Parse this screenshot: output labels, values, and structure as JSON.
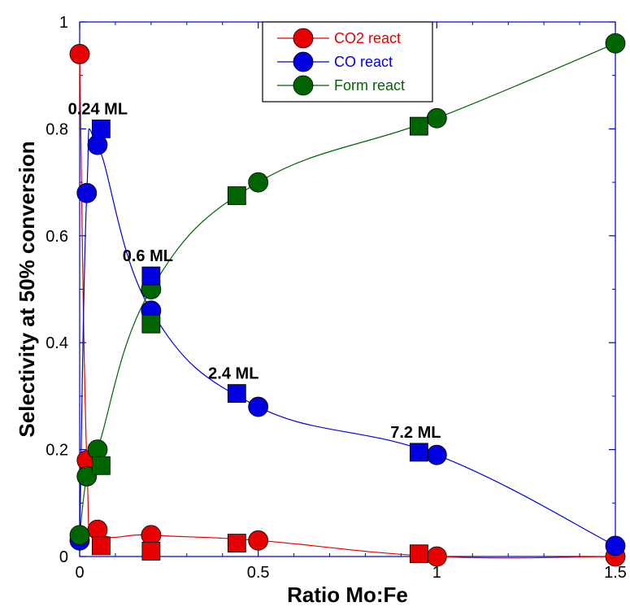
{
  "chart_data": {
    "type": "scatter",
    "xlabel": "Ratio Mo:Fe",
    "ylabel": "Selectivity at 50% conversion",
    "xlim": [
      0,
      1.5
    ],
    "ylim": [
      0,
      1
    ],
    "x_ticks": [
      "0",
      "0.5",
      "1",
      "1.5"
    ],
    "y_ticks": [
      "0",
      "0.2",
      "0.4",
      "0.6",
      "0.8",
      "1"
    ],
    "grid": false,
    "legend_position": "top-center",
    "series": [
      {
        "name": "CO2 react",
        "color": "#e60000",
        "marker": "circle",
        "line": true,
        "points": [
          [
            0,
            0.94
          ],
          [
            0.02,
            0.18
          ],
          [
            0.05,
            0.05
          ],
          [
            0.2,
            0.04
          ],
          [
            0.5,
            0.03
          ],
          [
            1.0,
            0.0
          ],
          [
            1.5,
            0.0
          ]
        ]
      },
      {
        "name": "CO react",
        "color": "#0000e0",
        "marker": "circle",
        "line": true,
        "points": [
          [
            0,
            0.03
          ],
          [
            0.02,
            0.68
          ],
          [
            0.05,
            0.77
          ],
          [
            0.2,
            0.46
          ],
          [
            0.5,
            0.28
          ],
          [
            1.0,
            0.19
          ],
          [
            1.5,
            0.02
          ]
        ]
      },
      {
        "name": "Form react",
        "color": "#006400",
        "marker": "circle",
        "line": true,
        "points": [
          [
            0,
            0.04
          ],
          [
            0.02,
            0.15
          ],
          [
            0.05,
            0.2
          ],
          [
            0.2,
            0.5
          ],
          [
            0.5,
            0.7
          ],
          [
            1.0,
            0.82
          ],
          [
            1.5,
            0.96
          ]
        ]
      },
      {
        "color": "#e60000",
        "marker": "square",
        "line": false,
        "points": [
          [
            0.06,
            0.02
          ],
          [
            0.2,
            0.01
          ],
          [
            0.44,
            0.025
          ],
          [
            0.95,
            0.005
          ]
        ]
      },
      {
        "color": "#0000e0",
        "marker": "square",
        "line": false,
        "points": [
          [
            0.06,
            0.8
          ],
          [
            0.2,
            0.525
          ],
          [
            0.44,
            0.305
          ],
          [
            0.95,
            0.195
          ]
        ]
      },
      {
        "color": "#006400",
        "marker": "square",
        "line": false,
        "points": [
          [
            0.06,
            0.17
          ],
          [
            0.2,
            0.435
          ],
          [
            0.44,
            0.675
          ],
          [
            0.95,
            0.805
          ]
        ]
      }
    ],
    "annotations": [
      {
        "text": "0.24 ML",
        "x": 0.06,
        "y": 0.8
      },
      {
        "text": "0.6 ML",
        "x": 0.2,
        "y": 0.525
      },
      {
        "text": "2.4 ML",
        "x": 0.44,
        "y": 0.305
      },
      {
        "text": "7.2 ML",
        "x": 0.95,
        "y": 0.195
      }
    ]
  }
}
